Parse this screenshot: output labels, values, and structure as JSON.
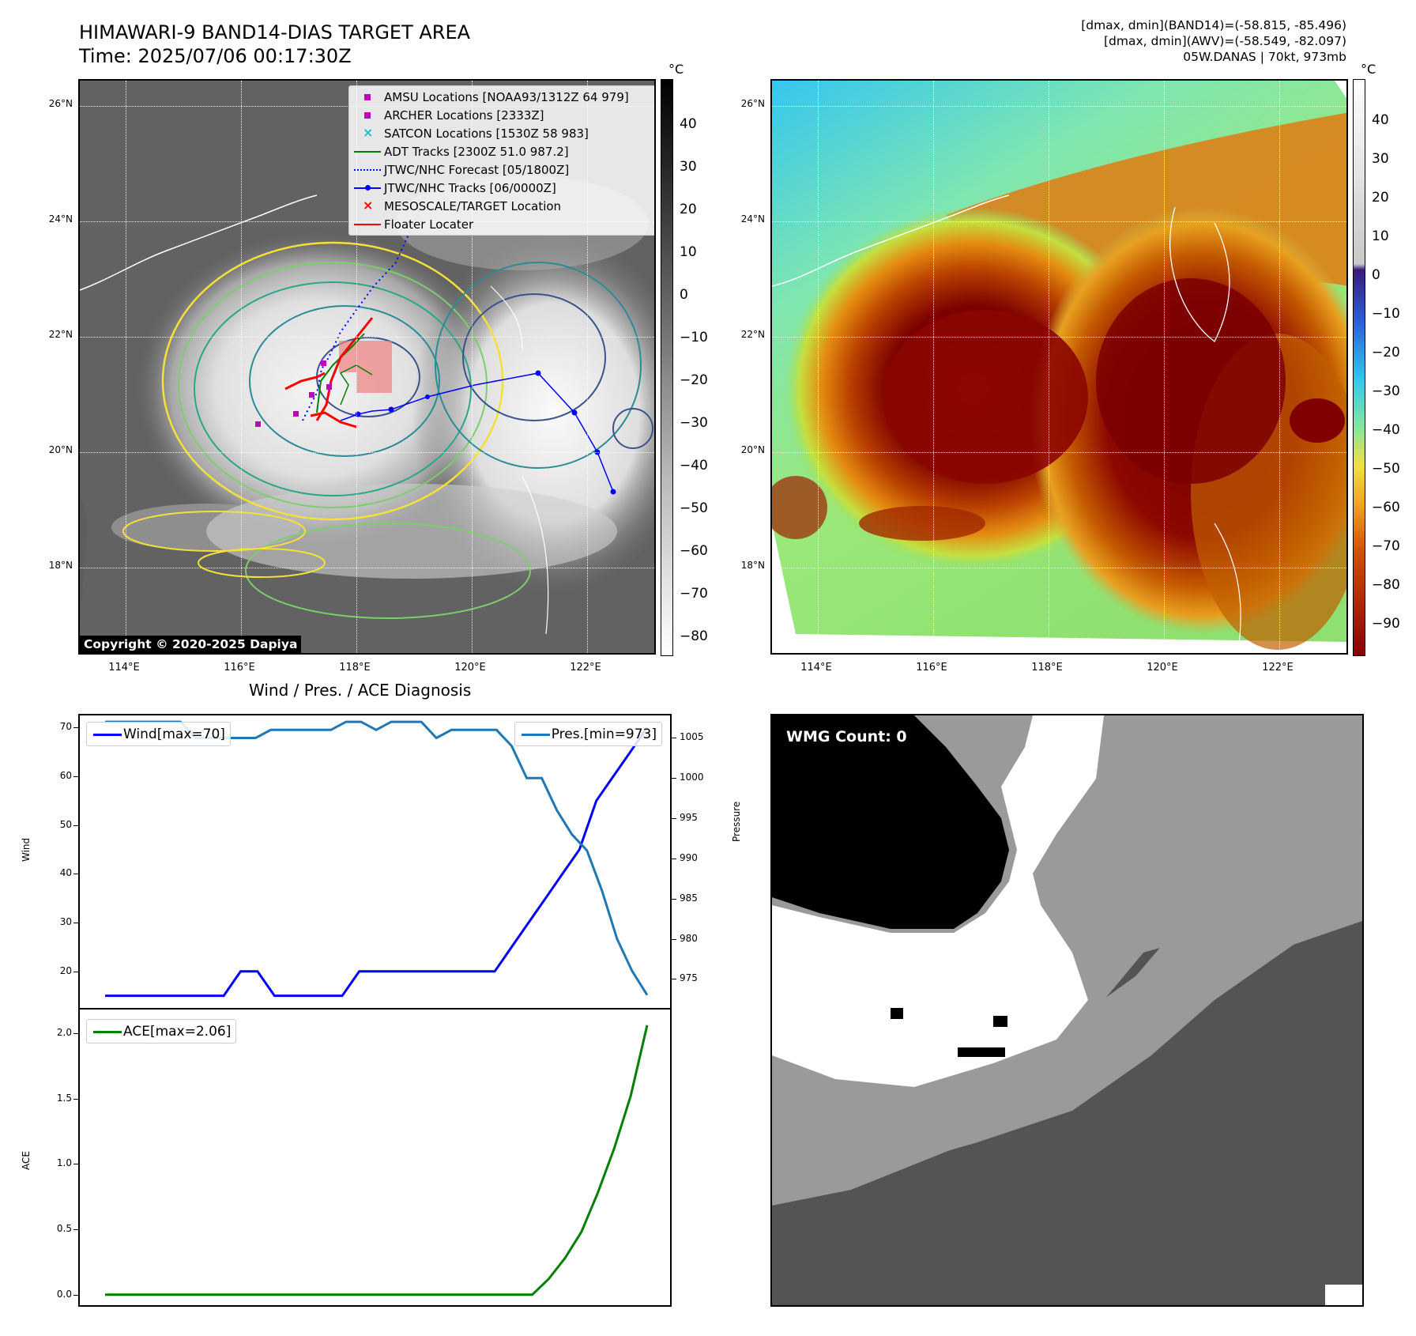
{
  "header": {
    "title_line1": "HIMAWARI-9 BAND14-DIAS TARGET AREA",
    "title_line2": "Time: 2025/07/06 00:17:30Z",
    "info_line1": "[dmax, dmin](BAND14)=(-58.815, -85.496)",
    "info_line2": "[dmax, dmin](AWV)=(-58.549, -82.097)",
    "info_line3": "05W.DANAS | 70kt, 973mb"
  },
  "map": {
    "lat_labels": [
      "26°N",
      "24°N",
      "22°N",
      "20°N",
      "18°N"
    ],
    "lon_labels": [
      "114°E",
      "116°E",
      "118°E",
      "120°E",
      "122°E"
    ],
    "copyright": "Copyright © 2020-2025 Dapiya",
    "legend": [
      {
        "label": "AMSU Locations [NOAA93/1312Z 64 979]",
        "marker": "square",
        "color": "#bf00bf"
      },
      {
        "label": "ARCHER Locations [2333Z]",
        "marker": "square",
        "color": "#bf00bf"
      },
      {
        "label": "SATCON Locations [1530Z 58 983]",
        "marker": "x",
        "color": "#17becf"
      },
      {
        "label": "ADT Tracks [2300Z 51.0 987.2]",
        "marker": "line",
        "color": "#008000"
      },
      {
        "label": "JTWC/NHC Forecast [05/1800Z]",
        "marker": "dotted",
        "color": "#0000ff"
      },
      {
        "label": "JTWC/NHC Tracks [06/0000Z]",
        "marker": "line-dot",
        "color": "#0000ff"
      },
      {
        "label": "MESOSCALE/TARGET Location",
        "marker": "x",
        "color": "#ff0000"
      },
      {
        "label": "Floater Locater",
        "marker": "line",
        "color": "#ff0000"
      }
    ],
    "colorbar_gray": {
      "unit": "°C",
      "ticks": [
        "40",
        "30",
        "20",
        "10",
        "0",
        "−10",
        "−20",
        "−30",
        "−40",
        "−50",
        "−60",
        "−70",
        "−80"
      ]
    },
    "colorbar_color": {
      "unit": "°C",
      "ticks": [
        "40",
        "30",
        "20",
        "10",
        "0",
        "−10",
        "−20",
        "−30",
        "−40",
        "−50",
        "−60",
        "−70",
        "−80",
        "−90"
      ]
    }
  },
  "diagnosis": {
    "title": "Wind / Pres. / ACE Diagnosis",
    "wind_ylabel": "Wind",
    "pres_ylabel": "Pressure",
    "ace_ylabel": "ACE",
    "wind_ticks": [
      "70",
      "60",
      "50",
      "40",
      "30",
      "20"
    ],
    "pres_ticks": [
      "1005",
      "1000",
      "995",
      "990",
      "985",
      "980",
      "975"
    ],
    "ace_ticks": [
      "2.0",
      "1.5",
      "1.0",
      "0.5",
      "0.0"
    ],
    "wind_legend": "Wind[max=70]",
    "pres_legend": "Pres.[min=973]",
    "ace_legend": "ACE[max=2.06]",
    "colors": {
      "wind": "#0000ff",
      "pres": "#1f77b4",
      "ace": "#008000"
    }
  },
  "chart_data": {
    "type": "line",
    "title": "Wind / Pres. / ACE Diagnosis",
    "series": [
      {
        "name": "Wind[max=70]",
        "axis": "wind",
        "ylim": [
          12.5,
          72.5
        ],
        "values": [
          15,
          15,
          15,
          15,
          15,
          15,
          15,
          15,
          20,
          20,
          15,
          15,
          15,
          15,
          15,
          20,
          20,
          20,
          20,
          20,
          20,
          20,
          20,
          20,
          25,
          30,
          35,
          40,
          45,
          55,
          60,
          65,
          70
        ]
      },
      {
        "name": "Pres.[min=973]",
        "axis": "pressure",
        "ylim": [
          971.4,
          1007.8
        ],
        "values": [
          1007,
          1007,
          1007,
          1007,
          1007,
          1007,
          1005,
          1005,
          1005,
          1005,
          1005,
          1006,
          1006,
          1006,
          1006,
          1006,
          1007,
          1007,
          1006,
          1007,
          1007,
          1007,
          1005,
          1006,
          1006,
          1006,
          1006,
          1004,
          1000,
          1000,
          996,
          993,
          991,
          986,
          980,
          976,
          973
        ]
      },
      {
        "name": "ACE[max=2.06]",
        "axis": "ace",
        "ylim": [
          -0.08,
          2.18
        ],
        "values": [
          0,
          0,
          0,
          0,
          0,
          0,
          0,
          0,
          0,
          0,
          0,
          0,
          0,
          0,
          0,
          0,
          0,
          0,
          0,
          0,
          0,
          0,
          0,
          0,
          0,
          0,
          0,
          0.12,
          0.28,
          0.48,
          0.78,
          1.12,
          1.52,
          2.06
        ]
      }
    ]
  },
  "wmg": {
    "label": "WMG Count: 0"
  }
}
